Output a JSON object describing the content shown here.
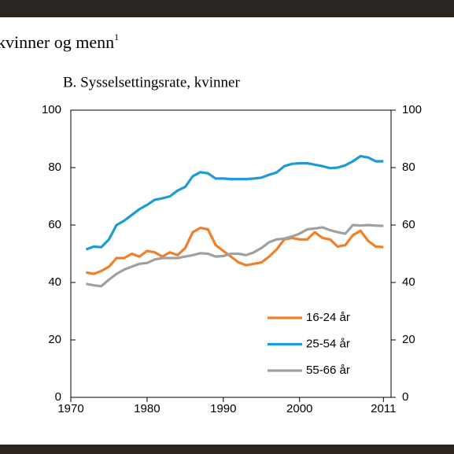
{
  "chart_data": {
    "type": "line",
    "heading": "kvinner og menn",
    "heading_note": "1",
    "title": "B. Sysselsettingsrate, kvinner",
    "x": [
      1972,
      1973,
      1974,
      1975,
      1976,
      1977,
      1978,
      1979,
      1980,
      1981,
      1982,
      1983,
      1984,
      1985,
      1986,
      1987,
      1988,
      1989,
      1990,
      1991,
      1992,
      1993,
      1994,
      1995,
      1996,
      1997,
      1998,
      1999,
      2000,
      2001,
      2002,
      2003,
      2004,
      2005,
      2006,
      2007,
      2008,
      2009,
      2010,
      2011
    ],
    "series": [
      {
        "name": "16-24 år",
        "color": "#f07f2a",
        "values": [
          43.5,
          43,
          44,
          45.5,
          48.5,
          48.5,
          50,
          49,
          51,
          50.5,
          49,
          50.5,
          49.5,
          52,
          57.5,
          59,
          58.5,
          53,
          51,
          49,
          47,
          46,
          46.5,
          47,
          49,
          51.5,
          55,
          55.5,
          55,
          55,
          57.5,
          55.5,
          55,
          52.5,
          53,
          56.5,
          58,
          54.5,
          52.5,
          52.3
        ]
      },
      {
        "name": "25-54 år",
        "color": "#1e9bd7",
        "values": [
          51.5,
          52.5,
          52.3,
          55,
          60,
          61.5,
          63.5,
          65.5,
          67,
          68.8,
          69.3,
          70,
          72,
          73.3,
          77,
          78.4,
          78,
          76.2,
          76.2,
          76,
          76,
          76,
          76.2,
          76.5,
          77.5,
          78.3,
          80.5,
          81.3,
          81.5,
          81.5,
          81,
          80.5,
          79.8,
          80,
          80.8,
          82.2,
          84,
          83.5,
          82.2,
          82.2
        ]
      },
      {
        "name": "55-66 år",
        "color": "#a0a0a0",
        "values": [
          39.5,
          39,
          38.7,
          41,
          43,
          44.5,
          45.5,
          46.5,
          46.8,
          48,
          48.5,
          48.5,
          48.5,
          49,
          49.5,
          50.2,
          50,
          49,
          49.2,
          50,
          50,
          49.5,
          50.5,
          52,
          54,
          55,
          55.3,
          56,
          57,
          58.5,
          58.8,
          59.2,
          58.2,
          57.5,
          57,
          60,
          59.8,
          60,
          59.8,
          59.7
        ]
      }
    ],
    "xlim": [
      1970,
      2012
    ],
    "xticks": [
      1970,
      1980,
      1990,
      2000,
      2011
    ],
    "ylim": [
      0,
      100
    ],
    "yticks": [
      0,
      20,
      40,
      60,
      80,
      100
    ],
    "y2lim": [
      0,
      100
    ],
    "y2ticks": [
      0,
      20,
      40,
      60,
      80,
      100
    ],
    "legend": "lower right"
  }
}
